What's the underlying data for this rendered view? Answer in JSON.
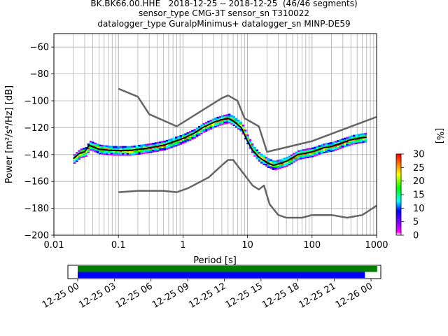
{
  "title": {
    "line1": "BK.BK66.00.HHE   2018-12-25 -- 2018-12-25  (46/46 segments)",
    "line2": "sensor_type CMG-3T sensor_sn T310022",
    "line3": "datalogger_type GuralpMinimus+ datalogger_sn MINP-DE59"
  },
  "chart_data": [
    {
      "type": "line",
      "title": "BK.BK66.00.HHE   2018-12-25 -- 2018-12-25  (46/46 segments)",
      "xlabel": "Period [s]",
      "ylabel": "Power [m²/s⁴/Hz] [dB]",
      "xscale": "log",
      "xlim": [
        0.01,
        1000
      ],
      "ylim": [
        -200,
        -50
      ],
      "x_ticks": [
        0.01,
        0.1,
        1,
        10,
        100,
        1000
      ],
      "x_tick_labels": [
        "0.01",
        "0.1",
        "1",
        "10",
        "100",
        "1000"
      ],
      "y_ticks": [
        -200,
        -180,
        -160,
        -140,
        -120,
        -100,
        -80,
        -60
      ],
      "y_tick_labels": [
        "−200",
        "−180",
        "−160",
        "−140",
        "−120",
        "−100",
        "−80",
        "−60"
      ],
      "grid": true,
      "series": [
        {
          "name": "",
          "color": "#666666",
          "points": [
            [
              0.1,
              -91
            ],
            [
              0.2,
              -97
            ],
            [
              0.3,
              -110
            ],
            [
              0.8,
              -119
            ],
            [
              4,
              -98
            ],
            [
              5,
              -96
            ],
            [
              7,
              -100
            ],
            [
              9,
              -113
            ],
            [
              15,
              -119
            ],
            [
              20,
              -138
            ],
            [
              100,
              -130
            ],
            [
              1000,
              -112
            ]
          ]
        },
        {
          "name": "",
          "color": "#666666",
          "points": [
            [
              0.1,
              -168
            ],
            [
              0.2,
              -167
            ],
            [
              0.5,
              -167
            ],
            [
              0.8,
              -168
            ],
            [
              1.2,
              -165
            ],
            [
              2.5,
              -157
            ],
            [
              4,
              -148
            ],
            [
              5,
              -144
            ],
            [
              6,
              -144
            ],
            [
              8,
              -152
            ],
            [
              12,
              -163
            ],
            [
              15,
              -166
            ],
            [
              18,
              -163
            ],
            [
              22,
              -177
            ],
            [
              30,
              -185
            ],
            [
              40,
              -187
            ],
            [
              70,
              -187
            ],
            [
              100,
              -185
            ],
            [
              150,
              -185
            ],
            [
              200,
              -185
            ],
            [
              350,
              -187
            ],
            [
              600,
              -185
            ],
            [
              1000,
              -178
            ]
          ]
        },
        {
          "name": "",
          "color": "#000000",
          "points": [
            [
              0.02,
              -143
            ],
            [
              0.025,
              -139
            ],
            [
              0.03,
              -138
            ],
            [
              0.035,
              -133
            ],
            [
              0.05,
              -136
            ],
            [
              0.08,
              -137
            ],
            [
              0.15,
              -137
            ],
            [
              0.3,
              -135
            ],
            [
              0.5,
              -133
            ],
            [
              1,
              -128
            ],
            [
              1.5,
              -124
            ],
            [
              2,
              -120
            ],
            [
              3,
              -116
            ],
            [
              4,
              -114
            ],
            [
              5,
              -113
            ],
            [
              6,
              -115
            ],
            [
              8,
              -120
            ],
            [
              10,
              -130
            ],
            [
              12,
              -137
            ],
            [
              15,
              -142
            ],
            [
              20,
              -146
            ],
            [
              25,
              -148
            ],
            [
              30,
              -147
            ],
            [
              40,
              -145
            ],
            [
              60,
              -140
            ],
            [
              100,
              -138
            ],
            [
              150,
              -135
            ],
            [
              200,
              -134
            ],
            [
              300,
              -131
            ],
            [
              400,
              -129
            ],
            [
              500,
              -128
            ],
            [
              700,
              -127
            ]
          ]
        }
      ],
      "colorbar": {
        "label": "[%]",
        "ticks": [
          0,
          5,
          10,
          15,
          20,
          25,
          30
        ],
        "tick_labels": [
          "0",
          "5",
          "10",
          "15",
          "20",
          "25",
          "30"
        ]
      }
    },
    {
      "type": "bar",
      "orientation": "horizontal",
      "xlabel": "",
      "x_tick_labels": [
        "12-25 00",
        "12-25 03",
        "12-25 06",
        "12-25 09",
        "12-25 12",
        "12-25 15",
        "12-25 18",
        "12-25 21",
        "12-26 00"
      ],
      "x_range_hours": [
        -0.8,
        24.8
      ],
      "bars": [
        {
          "color": "#008000",
          "start_hour": 0,
          "end_hour": 24.5
        },
        {
          "color": "#0000ff",
          "start_hour": 0,
          "end_hour": 23.5
        }
      ]
    }
  ]
}
